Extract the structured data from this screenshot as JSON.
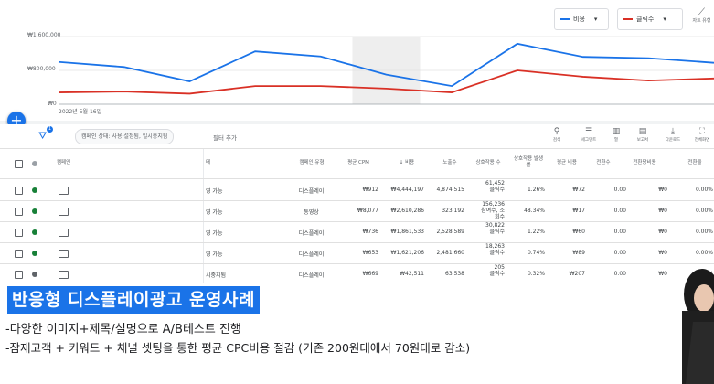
{
  "chart": {
    "legend": [
      {
        "label": "비용",
        "color": "#1a73e8"
      },
      {
        "label": "클릭수",
        "color": "#d93025"
      }
    ],
    "trend_label": "자트 유형",
    "y_ticks": [
      "₩1,600,000",
      "₩800,000",
      "₩0"
    ],
    "x_start_label": "2022년 5월 16일"
  },
  "chart_data": {
    "type": "line",
    "x": [
      "2022-05-16",
      "2022-05-17",
      "2022-05-18",
      "2022-05-19",
      "2022-05-20",
      "2022-05-21",
      "2022-05-22",
      "2022-05-23",
      "2022-05-24",
      "2022-05-25",
      "2022-05-26"
    ],
    "series": [
      {
        "name": "비용",
        "values": [
          1000000,
          880000,
          540000,
          1250000,
          1130000,
          700000,
          430000,
          1430000,
          1120000,
          1090000,
          980000
        ]
      },
      {
        "name": "클릭수",
        "values": [
          280000,
          300000,
          250000,
          430000,
          430000,
          370000,
          280000,
          800000,
          650000,
          560000,
          610000
        ]
      }
    ],
    "ylim": [
      0,
      1600000
    ]
  },
  "toolbar": {
    "filter_badge": "1",
    "filter_chip": "캠페인 상태: 사용 설정됨, 일시중지됨",
    "add_filter": "필터 추가",
    "tools": [
      {
        "icon": "⚲",
        "label": "검색"
      },
      {
        "icon": "☰",
        "label": "세그먼트"
      },
      {
        "icon": "▥",
        "label": "열"
      },
      {
        "icon": "▤",
        "label": "보고서"
      },
      {
        "icon": "⤓",
        "label": "다운로드"
      },
      {
        "icon": "⛶",
        "label": "전체화면"
      }
    ]
  },
  "table": {
    "headers": {
      "campaign": "캠페인",
      "status": "태",
      "type": "캠페인 유형",
      "cpm": "평균 CPM",
      "cost": "↓ 비용",
      "impr": "노출수",
      "interactions": "상호작용 수",
      "rate": "상호작용 발생률",
      "avg_cost": "평균 비용",
      "conv": "전환수",
      "cost_conv": "전환당비용",
      "conv_rate": "전환율"
    },
    "rows": [
      {
        "dot": "#188038",
        "status": "영 가능",
        "type": "디스플레이",
        "cpm": "₩912",
        "cost": "₩4,444,197",
        "impr": "4,874,515",
        "inter1": "61,452",
        "inter2": "클릭수",
        "inter3": "",
        "rate": "1.26%",
        "avg_cost": "₩72",
        "conv": "0.00",
        "cost_conv": "₩0",
        "conv_rate": "0.00%"
      },
      {
        "dot": "#188038",
        "status": "영 가능",
        "type": "동영상",
        "cpm": "₩8,077",
        "cost": "₩2,610,286",
        "impr": "323,192",
        "inter1": "156,236",
        "inter2": "참여수, 조",
        "inter3": "회수",
        "rate": "48.34%",
        "avg_cost": "₩17",
        "conv": "0.00",
        "cost_conv": "₩0",
        "conv_rate": "0.00%"
      },
      {
        "dot": "#188038",
        "status": "영 가능",
        "type": "디스플레이",
        "cpm": "₩736",
        "cost": "₩1,861,533",
        "impr": "2,528,589",
        "inter1": "30,822",
        "inter2": "클릭수",
        "inter3": "",
        "rate": "1.22%",
        "avg_cost": "₩60",
        "conv": "0.00",
        "cost_conv": "₩0",
        "conv_rate": "0.00%"
      },
      {
        "dot": "#188038",
        "status": "영 가능",
        "type": "디스플레이",
        "cpm": "₩653",
        "cost": "₩1,621,206",
        "impr": "2,481,660",
        "inter1": "18,263",
        "inter2": "클릭수",
        "inter3": "",
        "rate": "0.74%",
        "avg_cost": "₩89",
        "conv": "0.00",
        "cost_conv": "₩0",
        "conv_rate": "0.00%"
      },
      {
        "dot": "#5f6368",
        "status": "시중지됨",
        "type": "디스플레이",
        "cpm": "₩669",
        "cost": "₩42,511",
        "impr": "63,538",
        "inter1": "205",
        "inter2": "클릭수",
        "inter3": "",
        "rate": "0.32%",
        "avg_cost": "₩207",
        "conv": "0.00",
        "cost_conv": "₩0",
        "conv_rate": "0.00%"
      }
    ]
  },
  "caption": {
    "title": "반응형 디스플레이광고 운영사례",
    "line1": "-다양한 이미지+제목/설명으로 A/B테스트 진행",
    "line2": "-잠재고객 + 키워드 + 채널 셋팅을 통한 평균 CPC비용 절감 (기존 200원대에서 70원대로 감소)"
  }
}
